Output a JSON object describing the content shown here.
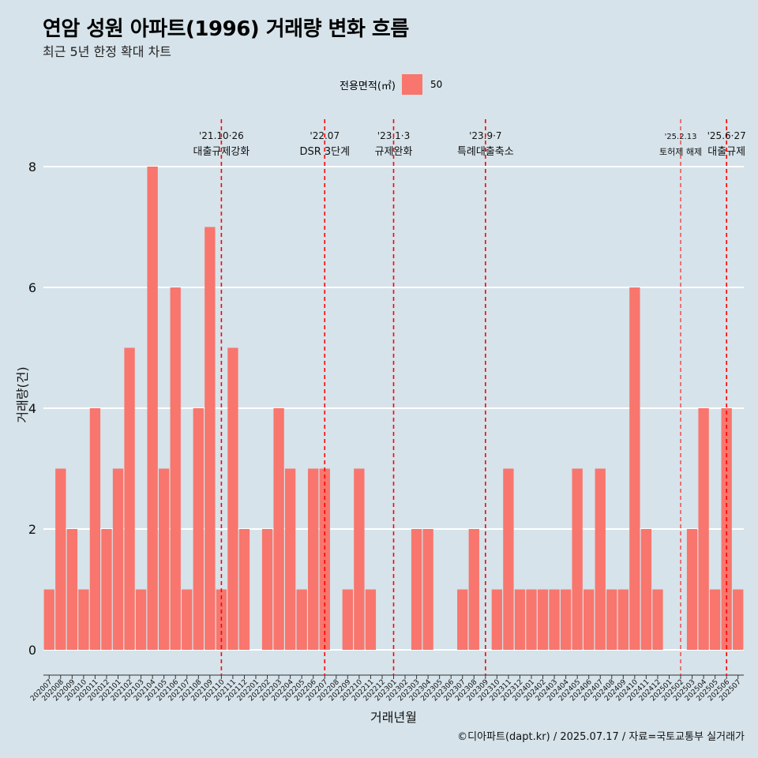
{
  "title": "연암 성원 아파트(1996) 거래량 변화 흐름",
  "subtitle": "최근 5년 한정 확대 차트",
  "legend": {
    "title": "전용면적(㎡)",
    "items": [
      {
        "label": "50",
        "color": "#f8766d"
      }
    ]
  },
  "caption": "©디아파트(dapt.kr) / 2025.07.17 / 자료=국토교통부 실거래가",
  "chart_data": {
    "type": "bar",
    "xlabel": "거래년월",
    "ylabel": "거래량(건)",
    "ylim": [
      0,
      8
    ],
    "yticks": [
      0,
      2,
      4,
      6,
      8
    ],
    "grid": true,
    "legend_position": "top",
    "bar_color": "#f8766d",
    "categories": [
      "202007",
      "202008",
      "202009",
      "202010",
      "202011",
      "202012",
      "202101",
      "202102",
      "202103",
      "202104",
      "202105",
      "202106",
      "202107",
      "202108",
      "202109",
      "202110",
      "202111",
      "202112",
      "202201",
      "202202",
      "202203",
      "202204",
      "202205",
      "202206",
      "202207",
      "202208",
      "202209",
      "202210",
      "202211",
      "202212",
      "202301",
      "202302",
      "202303",
      "202304",
      "202305",
      "202306",
      "202307",
      "202308",
      "202309",
      "202310",
      "202311",
      "202312",
      "202401",
      "202402",
      "202403",
      "202404",
      "202405",
      "202406",
      "202407",
      "202408",
      "202409",
      "202410",
      "202411",
      "202412",
      "202501",
      "202502",
      "202503",
      "202504",
      "202505",
      "202506",
      "202507"
    ],
    "series": [
      {
        "name": "50",
        "values": [
          1,
          3,
          2,
          1,
          4,
          2,
          3,
          5,
          1,
          8,
          3,
          6,
          1,
          4,
          7,
          1,
          5,
          2,
          0,
          2,
          4,
          3,
          1,
          3,
          3,
          0,
          1,
          3,
          1,
          0,
          0,
          0,
          2,
          2,
          0,
          0,
          1,
          2,
          0,
          1,
          3,
          1,
          1,
          1,
          1,
          1,
          3,
          1,
          3,
          1,
          1,
          6,
          2,
          1,
          0,
          0,
          2,
          4,
          1,
          4,
          1
        ]
      }
    ],
    "annotations": [
      {
        "category": "202110",
        "date": "'21.10·26",
        "label": "대출규제강화",
        "small": false
      },
      {
        "category": "202207",
        "date": "'22.07",
        "label": "DSR 3단계",
        "small": false
      },
      {
        "category": "202301",
        "date": "'23.1·3",
        "label": "규제완화",
        "small": false
      },
      {
        "category": "202309",
        "date": "'23.9·7",
        "label": "특례대출축소",
        "small": false
      },
      {
        "category": "202502",
        "date": "'25.2.13",
        "label": "토허제 해제",
        "small": true
      },
      {
        "category": "202506",
        "date": "'25.6·27",
        "label": "대출규제",
        "small": false
      }
    ]
  }
}
